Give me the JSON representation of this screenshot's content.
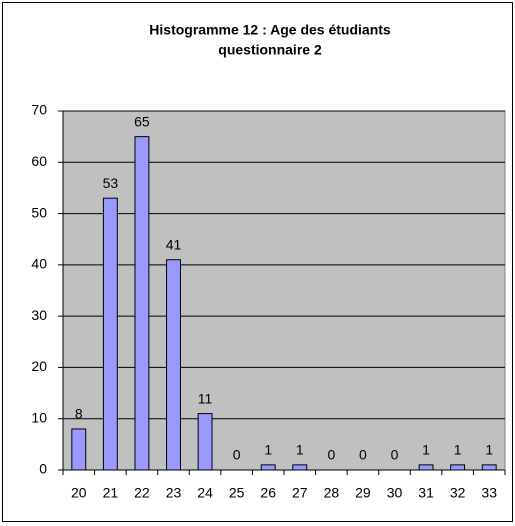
{
  "chart_data": {
    "type": "bar",
    "title": [
      "Histogramme 12 : Age des étudiants",
      "questionnaire 2"
    ],
    "categories": [
      "20",
      "21",
      "22",
      "23",
      "24",
      "25",
      "26",
      "27",
      "28",
      "29",
      "30",
      "31",
      "32",
      "33"
    ],
    "values": [
      8,
      53,
      65,
      41,
      11,
      0,
      1,
      1,
      0,
      0,
      0,
      1,
      1,
      1
    ],
    "color": "#9999ff",
    "ylim": [
      0,
      70
    ],
    "yticks": [
      0,
      10,
      20,
      30,
      40,
      50,
      60,
      70
    ],
    "grid": true
  }
}
